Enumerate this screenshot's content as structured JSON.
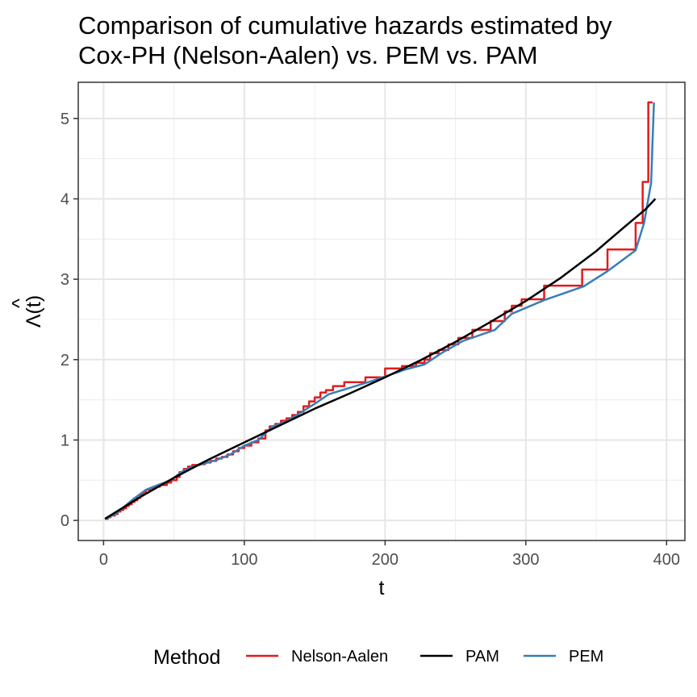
{
  "chart_data": {
    "type": "line",
    "title": [
      "Comparison of cumulative hazards estimated by",
      "Cox-PH (Nelson-Aalen) vs. PEM vs. PAM"
    ],
    "xlabel": "t",
    "ylabel": "Λ(t)",
    "ylabel_accent": "^",
    "xlim": [
      -18,
      413
    ],
    "ylim": [
      -0.25,
      5.45
    ],
    "x_ticks": [
      0,
      100,
      200,
      300,
      400
    ],
    "y_ticks": [
      0,
      1,
      2,
      3,
      4,
      5
    ],
    "grid": true,
    "legend": {
      "position": "bottom",
      "title": "Method"
    },
    "series": [
      {
        "name": "Nelson-Aalen",
        "color": "#e41a1c",
        "step": true,
        "x": [
          1,
          3,
          5,
          8,
          10,
          12,
          14,
          16,
          18,
          20,
          22,
          24,
          26,
          28,
          30,
          33,
          36,
          40,
          45,
          48,
          52,
          54,
          57,
          60,
          63,
          68,
          72,
          76,
          80,
          84,
          88,
          92,
          96,
          100,
          105,
          110,
          115,
          118,
          122,
          126,
          130,
          134,
          138,
          142,
          146,
          150,
          154,
          158,
          163,
          171,
          186,
          200,
          212,
          222,
          228,
          232,
          238,
          245,
          252,
          262,
          275,
          285,
          290,
          297,
          313,
          340,
          358,
          378,
          383,
          387,
          390
        ],
        "y": [
          0.02,
          0.04,
          0.06,
          0.08,
          0.11,
          0.13,
          0.15,
          0.18,
          0.2,
          0.23,
          0.25,
          0.28,
          0.32,
          0.35,
          0.38,
          0.4,
          0.42,
          0.44,
          0.47,
          0.5,
          0.54,
          0.6,
          0.64,
          0.67,
          0.69,
          0.7,
          0.72,
          0.74,
          0.77,
          0.79,
          0.82,
          0.86,
          0.9,
          0.93,
          0.97,
          1.02,
          1.12,
          1.17,
          1.2,
          1.24,
          1.27,
          1.31,
          1.35,
          1.42,
          1.48,
          1.53,
          1.59,
          1.62,
          1.67,
          1.72,
          1.78,
          1.89,
          1.92,
          1.96,
          2.0,
          2.08,
          2.12,
          2.19,
          2.27,
          2.37,
          2.48,
          2.6,
          2.67,
          2.75,
          2.92,
          3.12,
          3.37,
          3.7,
          4.21,
          5.2,
          5.2
        ]
      },
      {
        "name": "PAM",
        "color": "#000000",
        "step": false,
        "x": [
          1,
          25,
          50,
          75,
          100,
          125,
          150,
          175,
          200,
          225,
          250,
          275,
          300,
          325,
          350,
          370,
          385,
          392
        ],
        "y": [
          0.02,
          0.28,
          0.53,
          0.76,
          0.97,
          1.18,
          1.39,
          1.58,
          1.78,
          1.99,
          2.22,
          2.47,
          2.73,
          3.02,
          3.35,
          3.65,
          3.87,
          4.0
        ]
      },
      {
        "name": "PEM",
        "color": "#377eb8",
        "step": false,
        "x": [
          2,
          10,
          20,
          30,
          40,
          48,
          55,
          62,
          70,
          80,
          90,
          100,
          110,
          120,
          130,
          140,
          150,
          160,
          175,
          190,
          200,
          215,
          228,
          240,
          255,
          278,
          290,
          313,
          341,
          358,
          378,
          384,
          387,
          389,
          391
        ],
        "y": [
          0.02,
          0.1,
          0.25,
          0.38,
          0.45,
          0.5,
          0.6,
          0.66,
          0.7,
          0.75,
          0.82,
          0.93,
          1.0,
          1.17,
          1.23,
          1.34,
          1.45,
          1.57,
          1.65,
          1.73,
          1.79,
          1.88,
          1.94,
          2.08,
          2.23,
          2.37,
          2.57,
          2.74,
          2.91,
          3.1,
          3.36,
          3.7,
          4.0,
          4.2,
          5.2
        ]
      }
    ]
  }
}
